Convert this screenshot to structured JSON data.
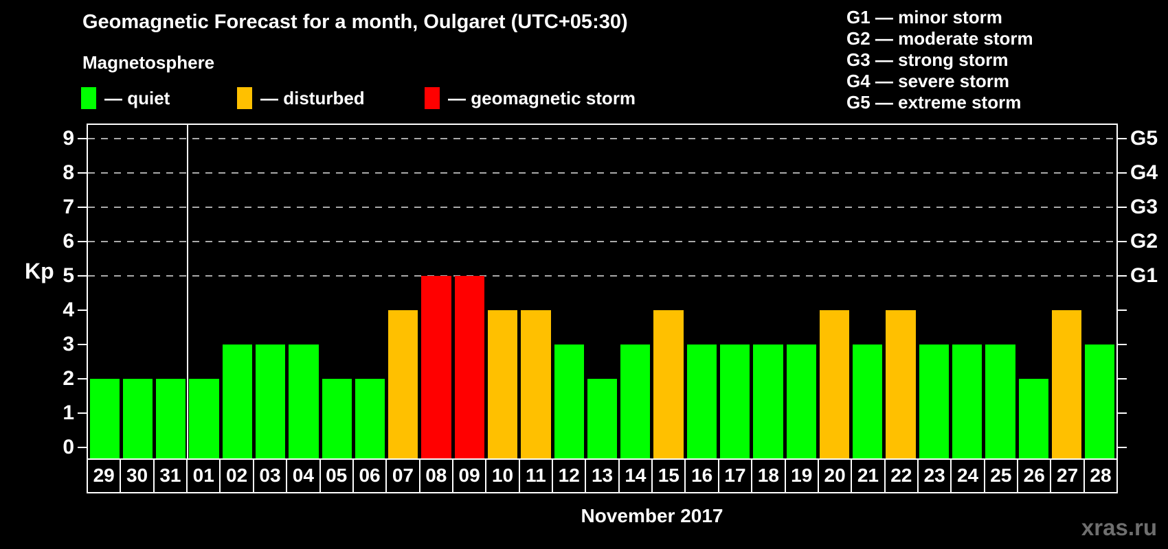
{
  "title": "Geomagnetic Forecast for a month, Oulgaret (UTC+05:30)",
  "subtitle": "Magnetosphere",
  "legend": {
    "items": [
      {
        "label": "— quiet",
        "color": "#00FF00",
        "status": "quiet"
      },
      {
        "label": "— disturbed",
        "color": "#FFC000",
        "status": "disturbed"
      },
      {
        "label": "— geomagnetic storm",
        "color": "#FF0000",
        "status": "storm"
      }
    ]
  },
  "g_legend": {
    "lines": [
      "G1 — minor storm",
      "G2 — moderate storm",
      "G3 — strong storm",
      "G4 — severe storm",
      "G5 — extreme storm"
    ]
  },
  "watermark": "xras.ru",
  "chart_data": {
    "type": "bar",
    "title": "Geomagnetic Forecast for a month, Oulgaret (UTC+05:30)",
    "ylabel": "Kp",
    "month_label": "November 2017",
    "ylim": [
      0,
      9
    ],
    "y_ticks": [
      0,
      1,
      2,
      3,
      4,
      5,
      6,
      7,
      8,
      9
    ],
    "gridline_kps": [
      5,
      6,
      7,
      8,
      9
    ],
    "grid": "dashed horizontal at Kp 5-9 only",
    "legend_position": "top",
    "categories": [
      "29",
      "30",
      "31",
      "01",
      "02",
      "03",
      "04",
      "05",
      "06",
      "07",
      "08",
      "09",
      "10",
      "11",
      "12",
      "13",
      "14",
      "15",
      "16",
      "17",
      "18",
      "19",
      "20",
      "21",
      "22",
      "23",
      "24",
      "25",
      "26",
      "27",
      "28"
    ],
    "values": [
      2,
      2,
      2,
      2,
      3,
      3,
      3,
      2,
      2,
      4,
      5,
      5,
      4,
      4,
      3,
      2,
      3,
      4,
      3,
      3,
      3,
      3,
      4,
      3,
      4,
      3,
      3,
      3,
      2,
      4,
      3
    ],
    "statuses": [
      "quiet",
      "quiet",
      "quiet",
      "quiet",
      "quiet",
      "quiet",
      "quiet",
      "quiet",
      "quiet",
      "disturbed",
      "storm",
      "storm",
      "disturbed",
      "disturbed",
      "quiet",
      "quiet",
      "quiet",
      "disturbed",
      "quiet",
      "quiet",
      "quiet",
      "quiet",
      "disturbed",
      "quiet",
      "disturbed",
      "quiet",
      "quiet",
      "quiet",
      "quiet",
      "disturbed",
      "quiet"
    ],
    "colors": {
      "quiet": "#00FF00",
      "disturbed": "#FFC000",
      "storm": "#FF0000"
    },
    "separator_after_index": 2,
    "g_scale": [
      {
        "kp": 5,
        "label": "G1"
      },
      {
        "kp": 6,
        "label": "G2"
      },
      {
        "kp": 7,
        "label": "G3"
      },
      {
        "kp": 8,
        "label": "G4"
      },
      {
        "kp": 9,
        "label": "G5"
      }
    ]
  }
}
